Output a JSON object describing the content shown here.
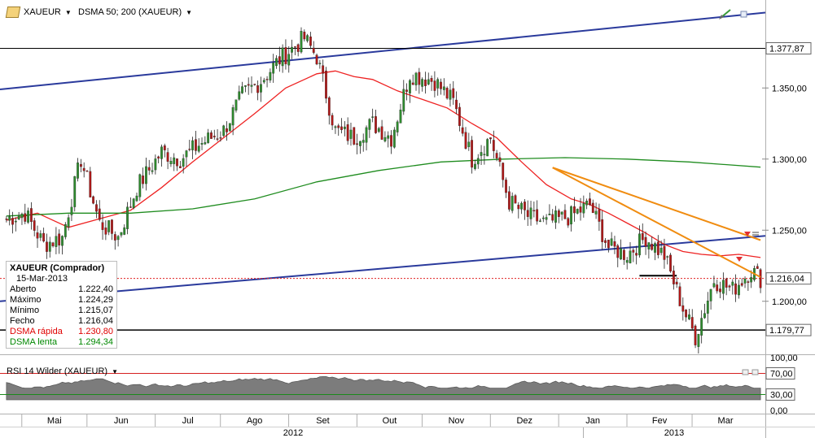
{
  "toolbar": {
    "symbol": "XAUEUR",
    "indicator": "DSMA 50; 200 (XAUEUR)"
  },
  "info_box": {
    "title": "XAUEUR (Comprador)",
    "date": "15-Mar-2013",
    "rows": [
      {
        "label": "Aberto",
        "value": "1.222,40"
      },
      {
        "label": "Máximo",
        "value": "1.224,29"
      },
      {
        "label": "Mínimo",
        "value": "1.215,07"
      },
      {
        "label": "Fecho",
        "value": "1.216,04"
      },
      {
        "label": "DSMA rápida",
        "value": "1.230,80"
      },
      {
        "label": "DSMA lenta",
        "value": "1.294,34"
      }
    ]
  },
  "rsi": {
    "label": "RSI 14 Wilder (XAUEUR)",
    "ticks": [
      "100,00",
      "70,00",
      "30,00",
      "0,00"
    ],
    "levels": [
      70,
      30
    ]
  },
  "colors": {
    "up": "#2e8b2e",
    "down": "#b01818",
    "fast": "#ee2222",
    "slow": "#1f8c1f",
    "channel": "#2a3a9c",
    "trend": "#f08c10",
    "level": "#000000",
    "last": "#e02020",
    "rsi_fill": "#7c7c7c",
    "rsi70": "#d62020",
    "rsi30": "#1a8a1a"
  },
  "chart_data": {
    "type": "candlestick",
    "y_ticks": [
      "1.350,00",
      "1.300,00",
      "1.250,00",
      "1.200,00"
    ],
    "ylim": [
      1165,
      1405
    ],
    "hlines": [
      {
        "label": "1.377,87",
        "value": 1377.87
      },
      {
        "label": "1.179,77",
        "value": 1179.77
      }
    ],
    "last_price": {
      "label": "1.216,04",
      "value": 1216.04
    },
    "months": [
      "Mai",
      "Jun",
      "Jul",
      "Ago",
      "Set",
      "Out",
      "Nov",
      "Dez",
      "Jan",
      "Fev",
      "Mar"
    ],
    "years": [
      "2012",
      "2013"
    ],
    "anchors": [
      {
        "t": 0,
        "v": 1258
      },
      {
        "t": 6,
        "v": 1262
      },
      {
        "t": 12,
        "v": 1240
      },
      {
        "t": 18,
        "v": 1245
      },
      {
        "t": 24,
        "v": 1300
      },
      {
        "t": 30,
        "v": 1255
      },
      {
        "t": 36,
        "v": 1245
      },
      {
        "t": 42,
        "v": 1280
      },
      {
        "t": 50,
        "v": 1305
      },
      {
        "t": 56,
        "v": 1300
      },
      {
        "t": 62,
        "v": 1310
      },
      {
        "t": 70,
        "v": 1320
      },
      {
        "t": 76,
        "v": 1345
      },
      {
        "t": 82,
        "v": 1355
      },
      {
        "t": 88,
        "v": 1370
      },
      {
        "t": 96,
        "v": 1385
      },
      {
        "t": 100,
        "v": 1372
      },
      {
        "t": 106,
        "v": 1320
      },
      {
        "t": 112,
        "v": 1315
      },
      {
        "t": 118,
        "v": 1325
      },
      {
        "t": 124,
        "v": 1315
      },
      {
        "t": 130,
        "v": 1360
      },
      {
        "t": 138,
        "v": 1355
      },
      {
        "t": 144,
        "v": 1340
      },
      {
        "t": 150,
        "v": 1300
      },
      {
        "t": 156,
        "v": 1315
      },
      {
        "t": 162,
        "v": 1270
      },
      {
        "t": 168,
        "v": 1260
      },
      {
        "t": 174,
        "v": 1255
      },
      {
        "t": 182,
        "v": 1260
      },
      {
        "t": 188,
        "v": 1268
      },
      {
        "t": 194,
        "v": 1238
      },
      {
        "t": 200,
        "v": 1233
      },
      {
        "t": 206,
        "v": 1245
      },
      {
        "t": 212,
        "v": 1232
      },
      {
        "t": 218,
        "v": 1195
      },
      {
        "t": 222,
        "v": 1175
      },
      {
        "t": 228,
        "v": 1215
      },
      {
        "t": 234,
        "v": 1208
      },
      {
        "t": 240,
        "v": 1222
      },
      {
        "t": 243,
        "v": 1216
      }
    ],
    "sma_fast": [
      [
        0,
        1257
      ],
      [
        10,
        1262
      ],
      [
        20,
        1252
      ],
      [
        30,
        1258
      ],
      [
        40,
        1264
      ],
      [
        50,
        1280
      ],
      [
        60,
        1298
      ],
      [
        70,
        1315
      ],
      [
        80,
        1332
      ],
      [
        90,
        1350
      ],
      [
        100,
        1360
      ],
      [
        106,
        1362
      ],
      [
        112,
        1358
      ],
      [
        118,
        1356
      ],
      [
        126,
        1348
      ],
      [
        134,
        1342
      ],
      [
        142,
        1336
      ],
      [
        150,
        1325
      ],
      [
        158,
        1315
      ],
      [
        166,
        1298
      ],
      [
        174,
        1282
      ],
      [
        182,
        1272
      ],
      [
        188,
        1268
      ],
      [
        194,
        1262
      ],
      [
        200,
        1255
      ],
      [
        206,
        1248
      ],
      [
        212,
        1240
      ],
      [
        218,
        1235
      ],
      [
        224,
        1233
      ],
      [
        230,
        1232
      ],
      [
        236,
        1233
      ],
      [
        243,
        1230.8
      ]
    ],
    "sma_slow": [
      [
        0,
        1260
      ],
      [
        20,
        1262
      ],
      [
        40,
        1262
      ],
      [
        60,
        1265
      ],
      [
        80,
        1272
      ],
      [
        100,
        1284
      ],
      [
        120,
        1292
      ],
      [
        140,
        1298
      ],
      [
        160,
        1300
      ],
      [
        180,
        1301
      ],
      [
        200,
        1300
      ],
      [
        220,
        1298
      ],
      [
        243,
        1294.34
      ]
    ],
    "channel": [
      [
        [
          0,
          1349
        ],
        [
          243,
          1403
        ]
      ],
      [
        [
          0,
          1200
        ],
        [
          243,
          1246
        ]
      ]
    ],
    "trendlines": [
      [
        [
          176,
          1294
        ],
        [
          243,
          1243
        ]
      ],
      [
        [
          176,
          1294
        ],
        [
          243,
          1217
        ]
      ]
    ],
    "support": [
      [
        204,
        1218
      ],
      [
        216,
        1218
      ]
    ]
  }
}
